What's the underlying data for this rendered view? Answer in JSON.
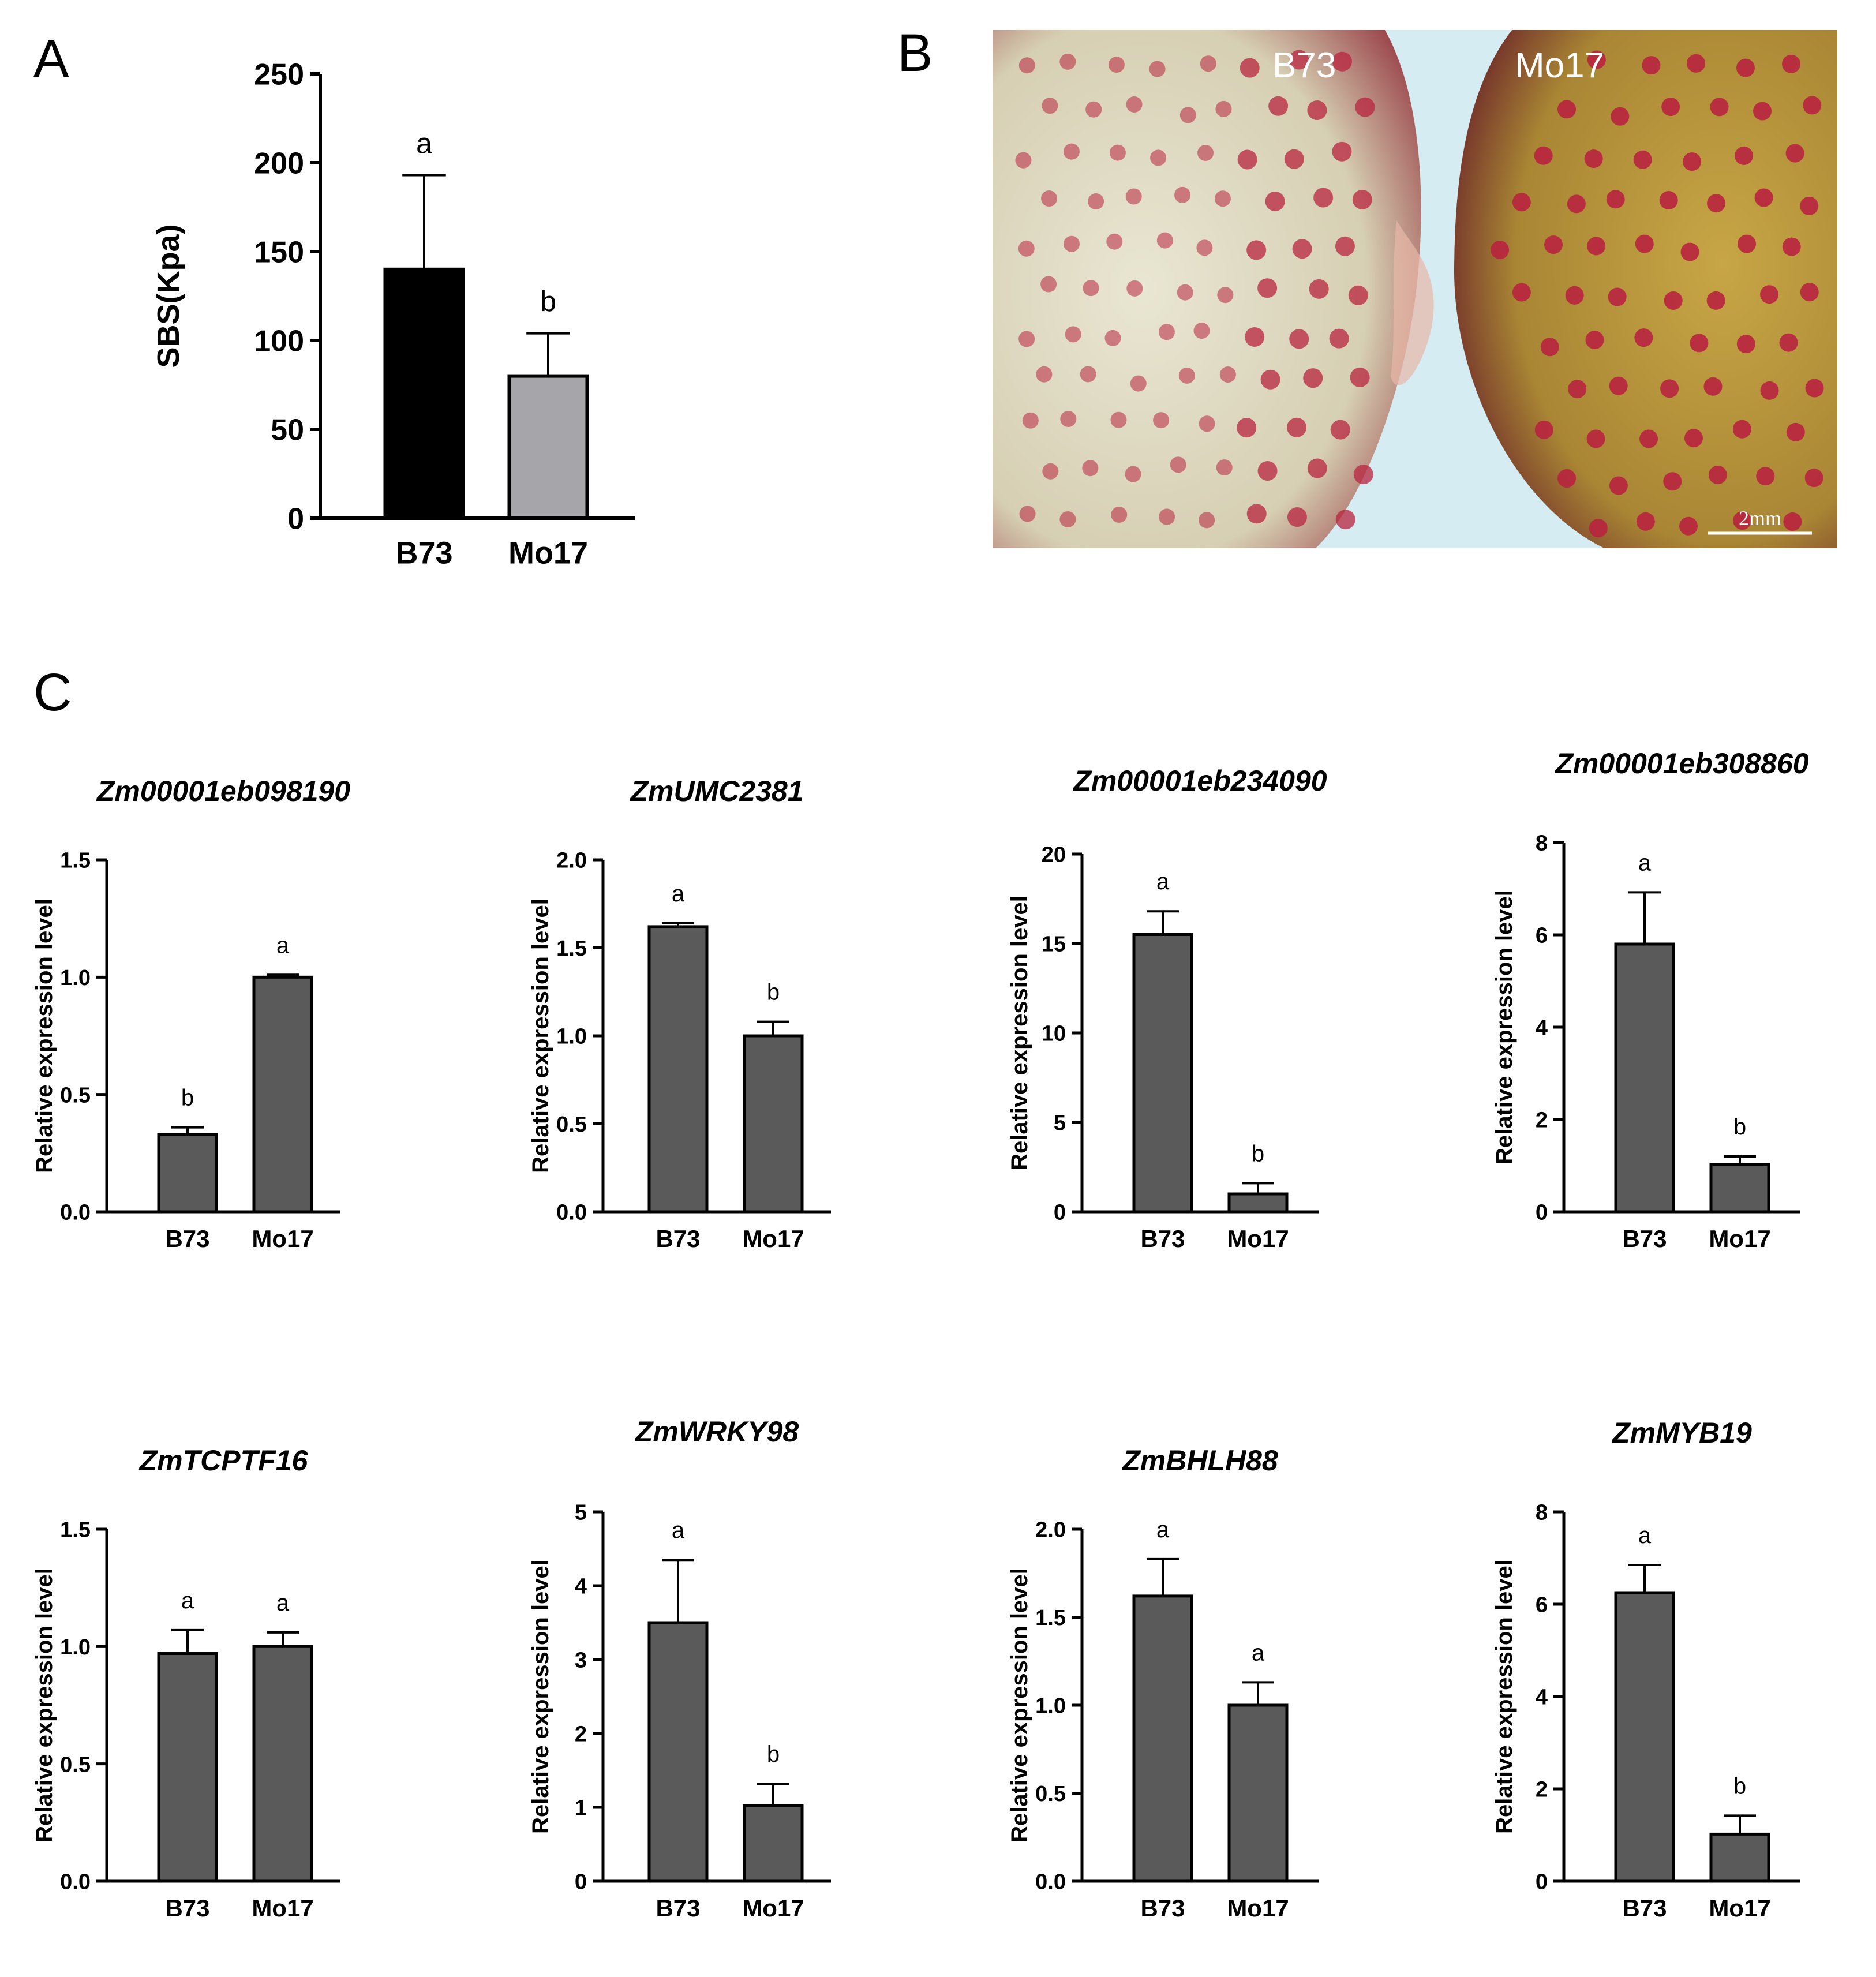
{
  "panels": {
    "a": "A",
    "b": "B",
    "c": "C"
  },
  "photo": {
    "left_label": "B73",
    "right_label": "Mo17",
    "scale_bar_label": "2mm",
    "colors": {
      "b73_tissue": "#d7d1b8",
      "mo17_tissue": "#b8953a",
      "stain": "#b8243f",
      "background": "#c8e4ec"
    }
  },
  "colors": {
    "panel_a_b73": "#000000",
    "panel_a_mo17": "#a6a6aa",
    "bar": "#5a5a5a",
    "axis": "#000000"
  },
  "chart_data": [
    {
      "type": "bar",
      "panel": "A",
      "title": "",
      "xlabel": "",
      "ylabel": "SBS(Kpa)",
      "categories": [
        "B73",
        "Mo17"
      ],
      "values": [
        140,
        80
      ],
      "errors": [
        53,
        24
      ],
      "letters": [
        "a",
        "b"
      ],
      "ylim": [
        0,
        250
      ],
      "yticks": [
        "0",
        "50",
        "100",
        "150",
        "200",
        "250"
      ],
      "grid": false
    },
    {
      "type": "bar",
      "panel": "C",
      "title": "Zm00001eb098190",
      "ylabel": "Relative expression level",
      "categories": [
        "B73",
        "Mo17"
      ],
      "values": [
        0.33,
        1.0
      ],
      "errors": [
        0.03,
        0.01
      ],
      "letters": [
        "b",
        "a"
      ],
      "ylim": [
        0,
        1.5
      ],
      "yticks": [
        "0.0",
        "0.5",
        "1.0",
        "1.5"
      ]
    },
    {
      "type": "bar",
      "panel": "C",
      "title": "ZmUMC2381",
      "ylabel": "Relative expression level",
      "categories": [
        "B73",
        "Mo17"
      ],
      "values": [
        1.62,
        1.0
      ],
      "errors": [
        0.02,
        0.08
      ],
      "letters": [
        "a",
        "b"
      ],
      "ylim": [
        0,
        2.0
      ],
      "yticks": [
        "0.0",
        "0.5",
        "1.0",
        "1.5",
        "2.0"
      ]
    },
    {
      "type": "bar",
      "panel": "C",
      "title": "Zm00001eb234090",
      "ylabel": "Relative expression level",
      "categories": [
        "B73",
        "Mo17"
      ],
      "values": [
        15.5,
        1.0
      ],
      "errors": [
        1.3,
        0.6
      ],
      "letters": [
        "a",
        "b"
      ],
      "ylim": [
        0,
        20
      ],
      "yticks": [
        "0",
        "5",
        "10",
        "15",
        "20"
      ]
    },
    {
      "type": "bar",
      "panel": "C",
      "title": "Zm00001eb308860",
      "ylabel": "Relative expression level",
      "categories": [
        "B73",
        "Mo17"
      ],
      "values": [
        5.8,
        1.03
      ],
      "errors": [
        1.12,
        0.17
      ],
      "letters": [
        "a",
        "b"
      ],
      "ylim": [
        0,
        8
      ],
      "yticks": [
        "0",
        "2",
        "4",
        "6",
        "8"
      ]
    },
    {
      "type": "bar",
      "panel": "C",
      "title": "ZmTCPTF16",
      "ylabel": "Relative expression level",
      "categories": [
        "B73",
        "Mo17"
      ],
      "values": [
        0.97,
        1.0
      ],
      "errors": [
        0.1,
        0.06
      ],
      "letters": [
        "a",
        "a"
      ],
      "ylim": [
        0,
        1.5
      ],
      "yticks": [
        "0.0",
        "0.5",
        "1.0",
        "1.5"
      ]
    },
    {
      "type": "bar",
      "panel": "C",
      "title": "ZmWRKY98",
      "ylabel": "Relative expression level",
      "categories": [
        "B73",
        "Mo17"
      ],
      "values": [
        3.5,
        1.02
      ],
      "errors": [
        0.85,
        0.3
      ],
      "letters": [
        "a",
        "b"
      ],
      "ylim": [
        0,
        5
      ],
      "yticks": [
        "0",
        "1",
        "2",
        "3",
        "4",
        "5"
      ]
    },
    {
      "type": "bar",
      "panel": "C",
      "title": "ZmBHLH88",
      "ylabel": "Relative expression level",
      "categories": [
        "B73",
        "Mo17"
      ],
      "values": [
        1.62,
        1.0
      ],
      "errors": [
        0.21,
        0.13
      ],
      "letters": [
        "a",
        "a"
      ],
      "ylim": [
        0,
        2.0
      ],
      "yticks": [
        "0.0",
        "0.5",
        "1.0",
        "1.5",
        "2.0"
      ]
    },
    {
      "type": "bar",
      "panel": "C",
      "title": "ZmMYB19",
      "ylabel": "Relative expression level",
      "categories": [
        "B73",
        "Mo17"
      ],
      "values": [
        6.25,
        1.02
      ],
      "errors": [
        0.6,
        0.4
      ],
      "letters": [
        "a",
        "b"
      ],
      "ylim": [
        0,
        8
      ],
      "yticks": [
        "0",
        "2",
        "4",
        "6",
        "8"
      ]
    }
  ]
}
